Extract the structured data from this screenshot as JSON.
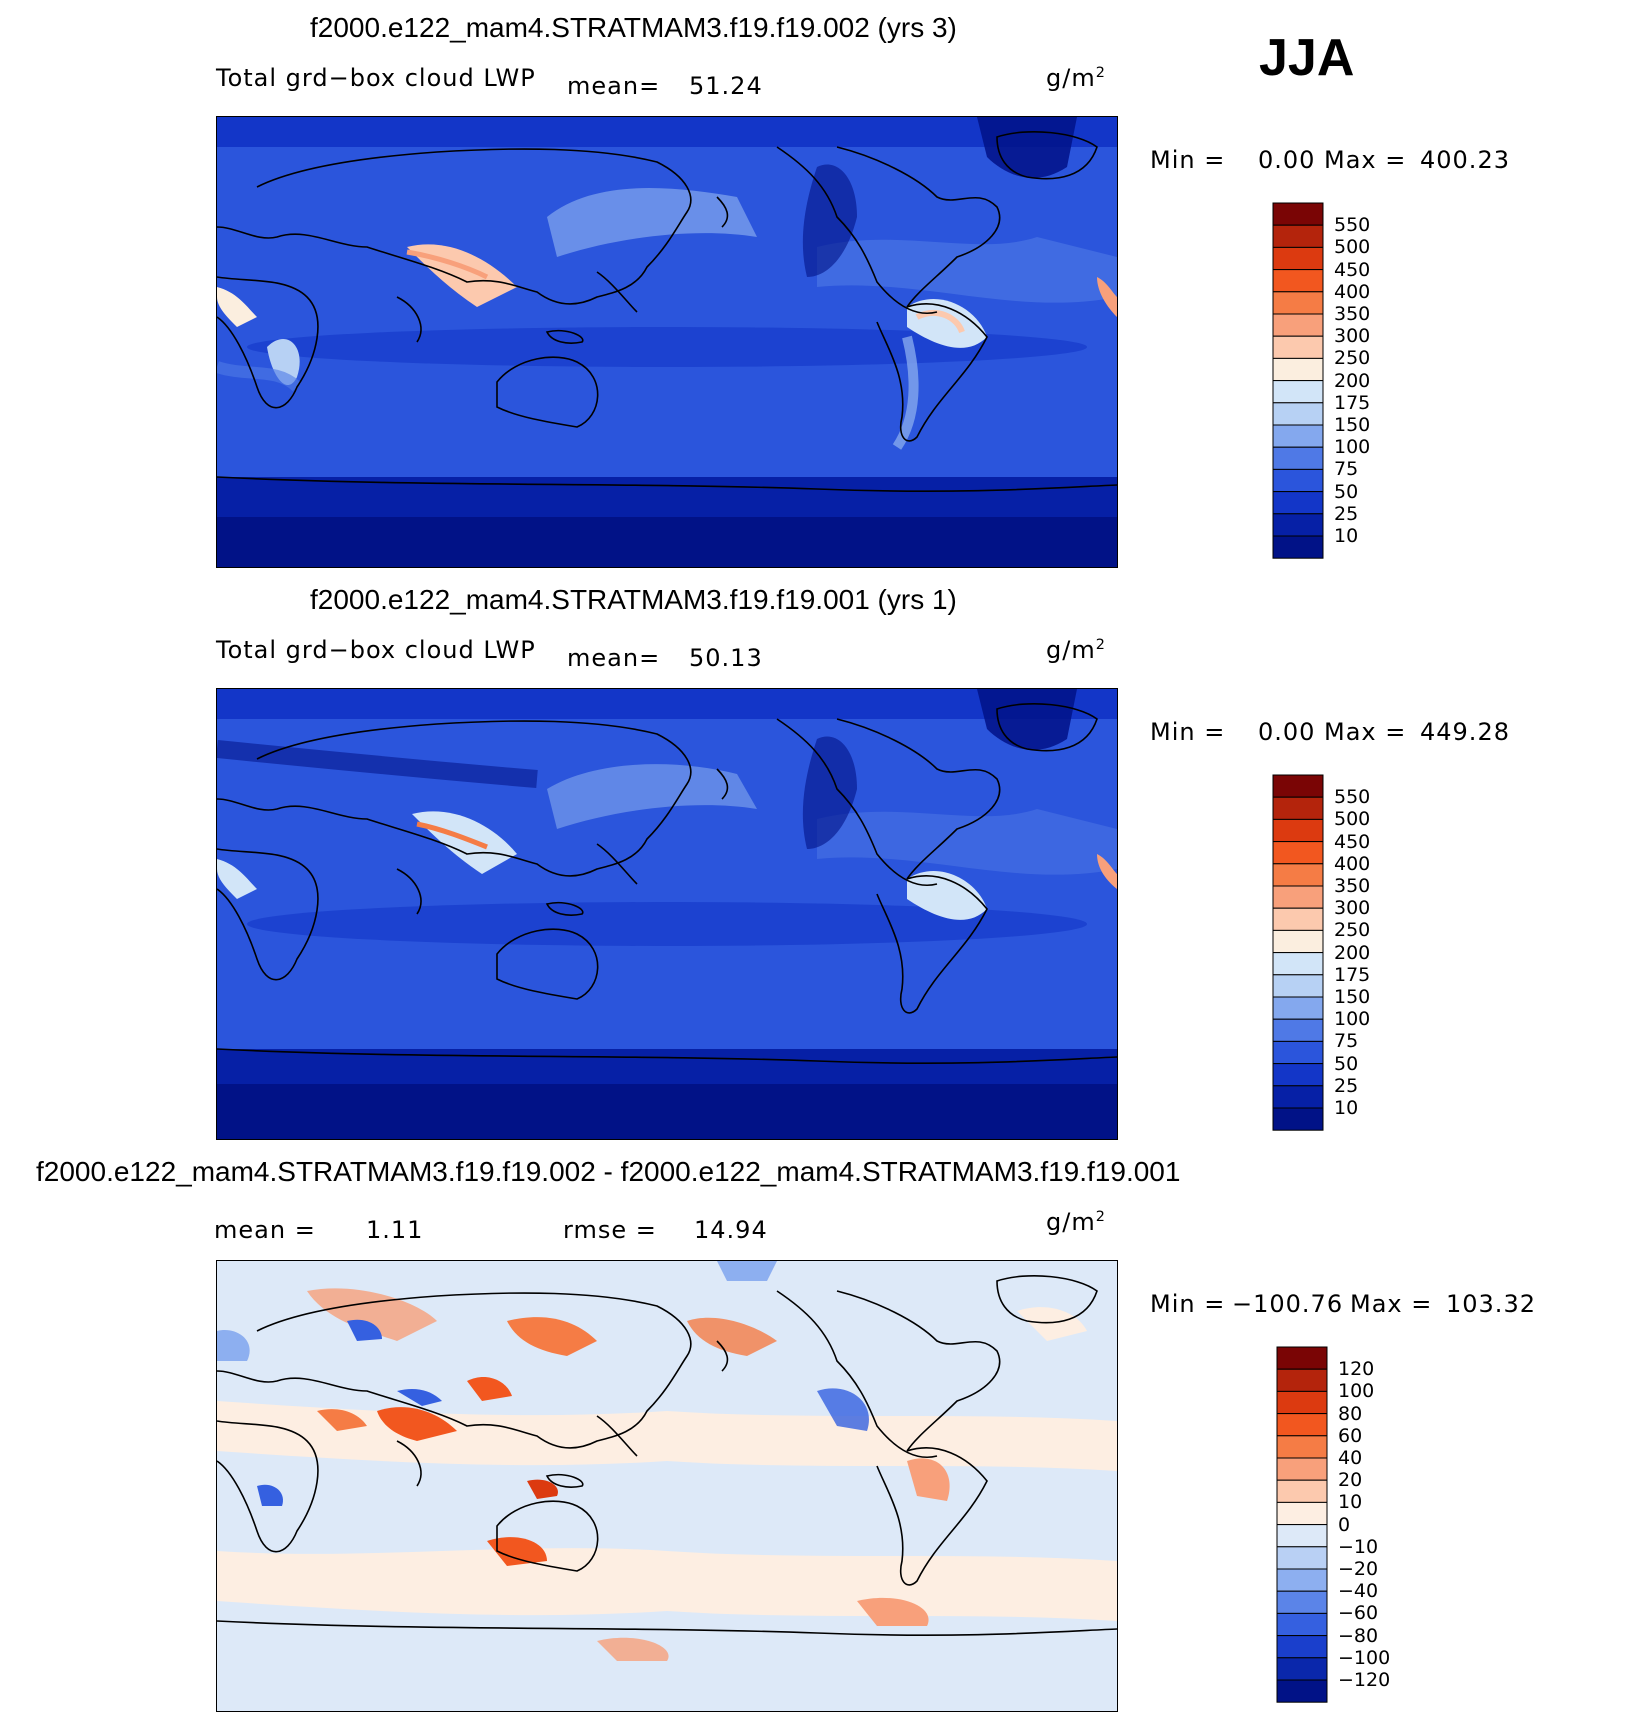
{
  "season": "JJA",
  "chart_data": [
    {
      "type": "heatmap",
      "title": "f2000.e122_mam4.STRATMAM3.f19.f19.002 (yrs 3)",
      "variable": "Total grd−box cloud LWP",
      "mean_label": "mean=",
      "mean": "51.24",
      "units": "g/m",
      "units_exp": "2",
      "min_label": "Min  =",
      "min": "0.00",
      "max_label": "Max  =",
      "max": "400.23",
      "levels": [
        "550",
        "500",
        "450",
        "400",
        "350",
        "300",
        "250",
        "200",
        "175",
        "150",
        "100",
        "75",
        "50",
        "25",
        "10"
      ],
      "colors": [
        "#7a0505",
        "#b4240c",
        "#dc3a10",
        "#f2571f",
        "#f57c45",
        "#f8a07b",
        "#fcc9ae",
        "#fbeedf",
        "#d2e5f8",
        "#b7d1f4",
        "#84a8ee",
        "#4f79e6",
        "#2b55dc",
        "#1336c8",
        "#0620a6",
        "#011287"
      ]
    },
    {
      "type": "heatmap",
      "title": "f2000.e122_mam4.STRATMAM3.f19.f19.001 (yrs 1)",
      "variable": "Total grd−box cloud LWP",
      "mean_label": "mean=",
      "mean": "50.13",
      "units": "g/m",
      "units_exp": "2",
      "min_label": "Min  =",
      "min": "0.00",
      "max_label": "Max  =",
      "max": "449.28",
      "levels": [
        "550",
        "500",
        "450",
        "400",
        "350",
        "300",
        "250",
        "200",
        "175",
        "150",
        "100",
        "75",
        "50",
        "25",
        "10"
      ],
      "colors": [
        "#7a0505",
        "#b4240c",
        "#dc3a10",
        "#f2571f",
        "#f57c45",
        "#f8a07b",
        "#fcc9ae",
        "#fbeedf",
        "#d2e5f8",
        "#b7d1f4",
        "#84a8ee",
        "#4f79e6",
        "#2b55dc",
        "#1336c8",
        "#0620a6",
        "#011287"
      ]
    },
    {
      "type": "heatmap",
      "title": "f2000.e122_mam4.STRATMAM3.f19.f19.002 - f2000.e122_mam4.STRATMAM3.f19.f19.001",
      "mean_label": "mean  =",
      "mean": "1.11",
      "rmse_label": "rmse  =",
      "rmse": "14.94",
      "units": "g/m",
      "units_exp": "2",
      "min_label": "Min  =",
      "min": "−100.76",
      "max_label": "Max  =",
      "max": "103.32",
      "levels": [
        "120",
        "100",
        "80",
        "60",
        "40",
        "20",
        "10",
        "0",
        "−10",
        "−20",
        "−40",
        "−60",
        "−80",
        "−100",
        "−120"
      ],
      "colors": [
        "#7a0505",
        "#b4240c",
        "#dc3a10",
        "#f2571f",
        "#f57c45",
        "#f8a07b",
        "#fcc9ae",
        "#fdeee2",
        "#dde9f8",
        "#b9d0f4",
        "#8daff0",
        "#5b84e8",
        "#3560e0",
        "#1a3fcc",
        "#0a27ab",
        "#011287"
      ]
    }
  ]
}
